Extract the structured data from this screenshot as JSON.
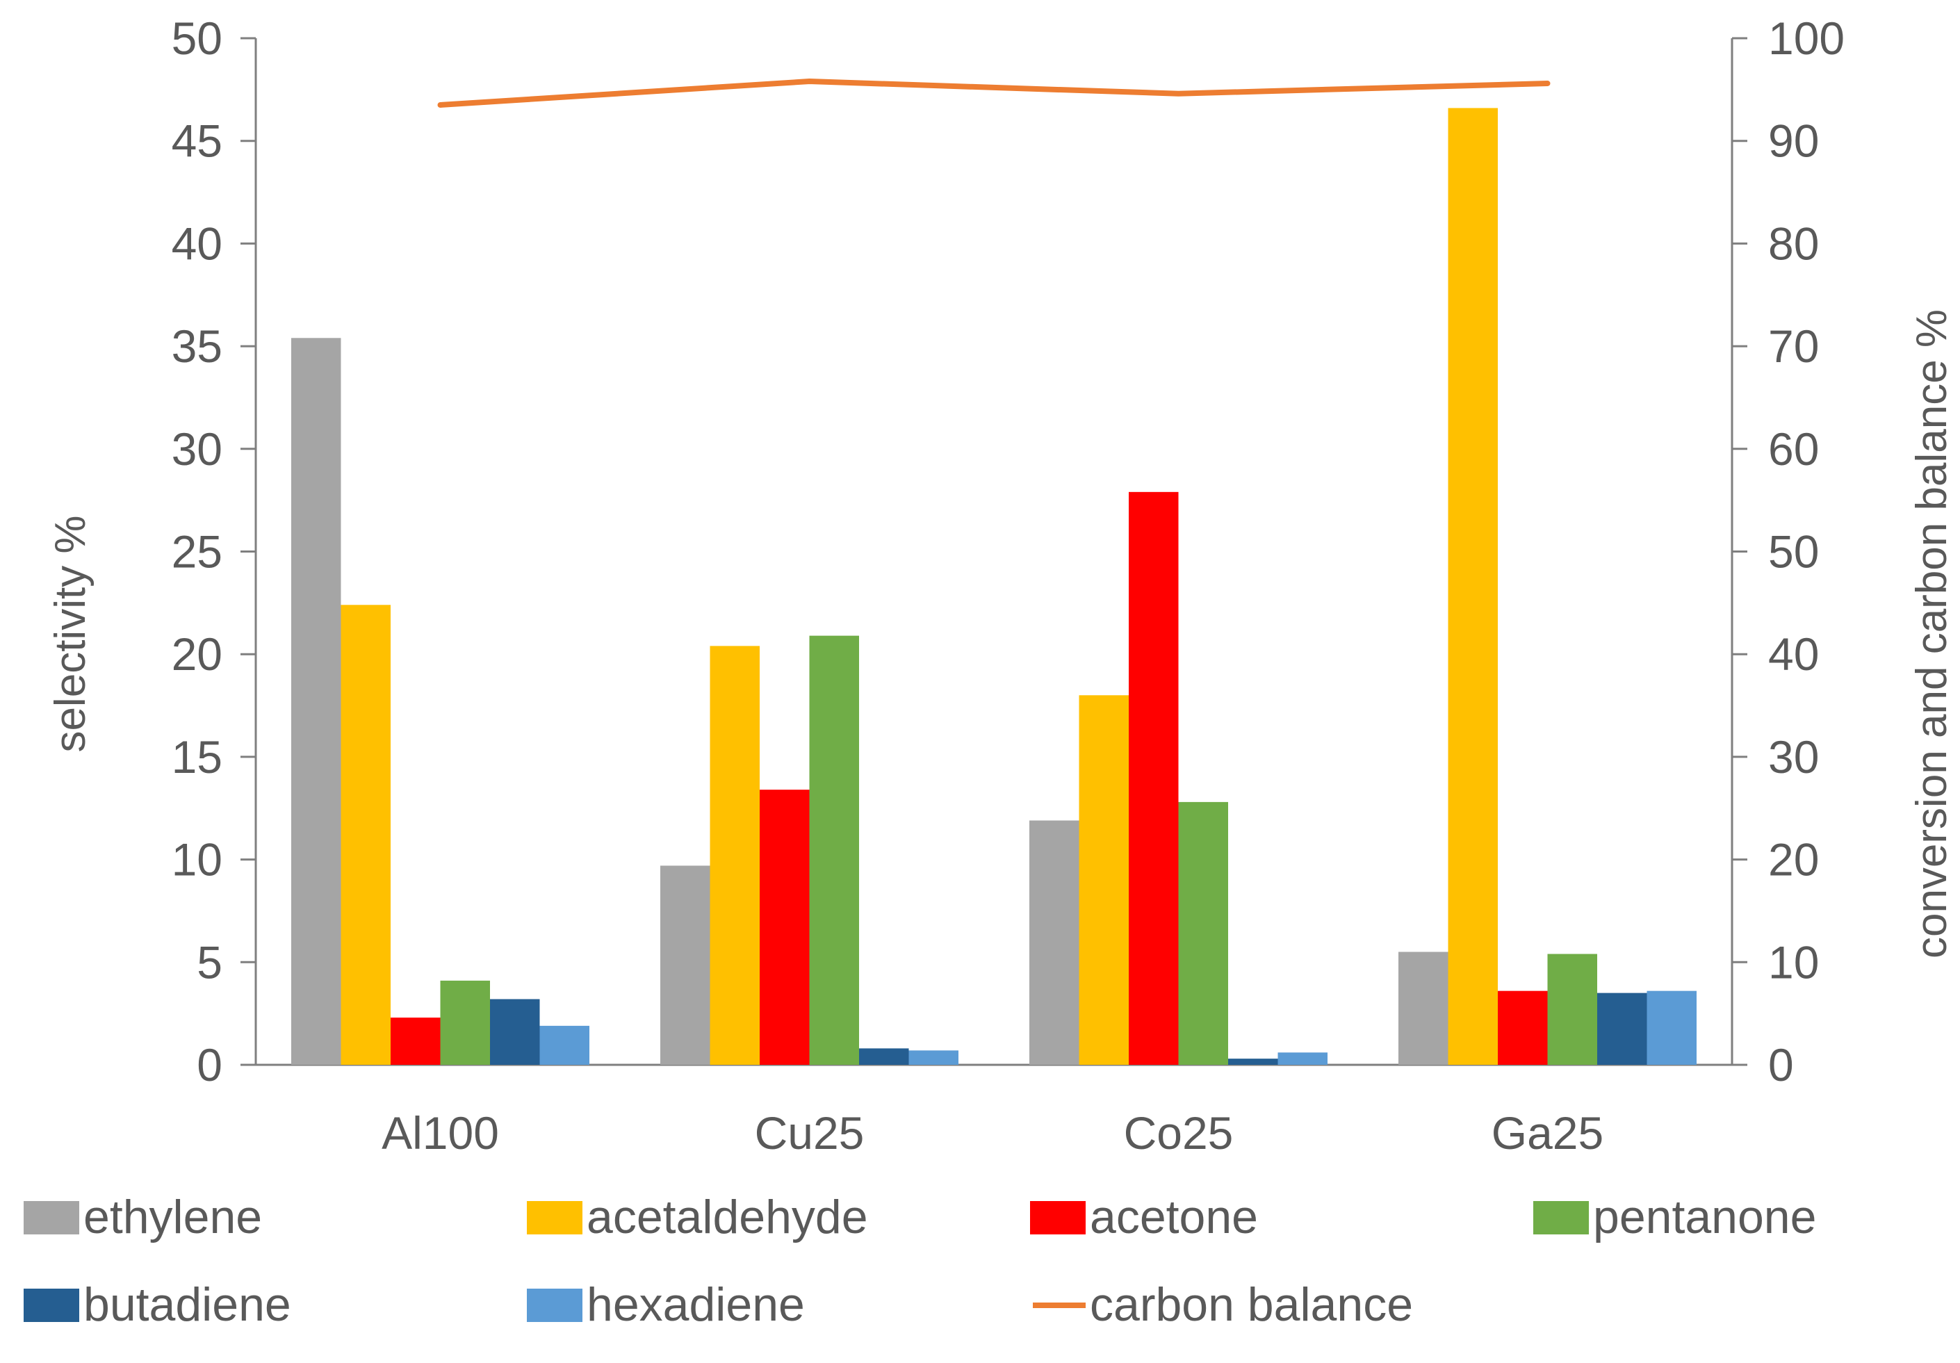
{
  "chart_data": {
    "type": "bar",
    "title": "",
    "categories": [
      "Al100",
      "Cu25",
      "Co25",
      "Ga25"
    ],
    "ylabel": "selectivity %",
    "y2label": "conversion and carbon balance %",
    "ylim": [
      0,
      50
    ],
    "y2lim": [
      0,
      100
    ],
    "yticks": [
      "0",
      "5",
      "10",
      "15",
      "20",
      "25",
      "30",
      "35",
      "40",
      "45",
      "50"
    ],
    "y2ticks": [
      "0",
      "10",
      "20",
      "30",
      "40",
      "50",
      "60",
      "70",
      "80",
      "90",
      "100"
    ],
    "grid": false,
    "legend_position": "bottom",
    "series": [
      {
        "name": "ethylene",
        "color": "#A5A5A5",
        "values": [
          35.4,
          9.7,
          11.9,
          5.5
        ]
      },
      {
        "name": "acetaldehyde",
        "color": "#FFC000",
        "values": [
          22.4,
          20.4,
          18.0,
          46.6
        ]
      },
      {
        "name": "acetone",
        "color": "#FF0000",
        "values": [
          2.3,
          13.4,
          27.9,
          3.6
        ]
      },
      {
        "name": "pentanone",
        "color": "#70AD47",
        "values": [
          4.1,
          20.9,
          12.8,
          5.4
        ]
      },
      {
        "name": "butadiene",
        "color": "#255E91",
        "values": [
          3.2,
          0.8,
          0.3,
          3.5
        ]
      },
      {
        "name": "hexadiene",
        "color": "#5B9BD5",
        "values": [
          1.9,
          0.7,
          0.6,
          3.6
        ]
      }
    ],
    "line_series": [
      {
        "name": "carbon balance",
        "color": "#ED7D31",
        "axis": "right",
        "values": [
          93.5,
          95.8,
          94.6,
          95.6
        ]
      }
    ]
  }
}
